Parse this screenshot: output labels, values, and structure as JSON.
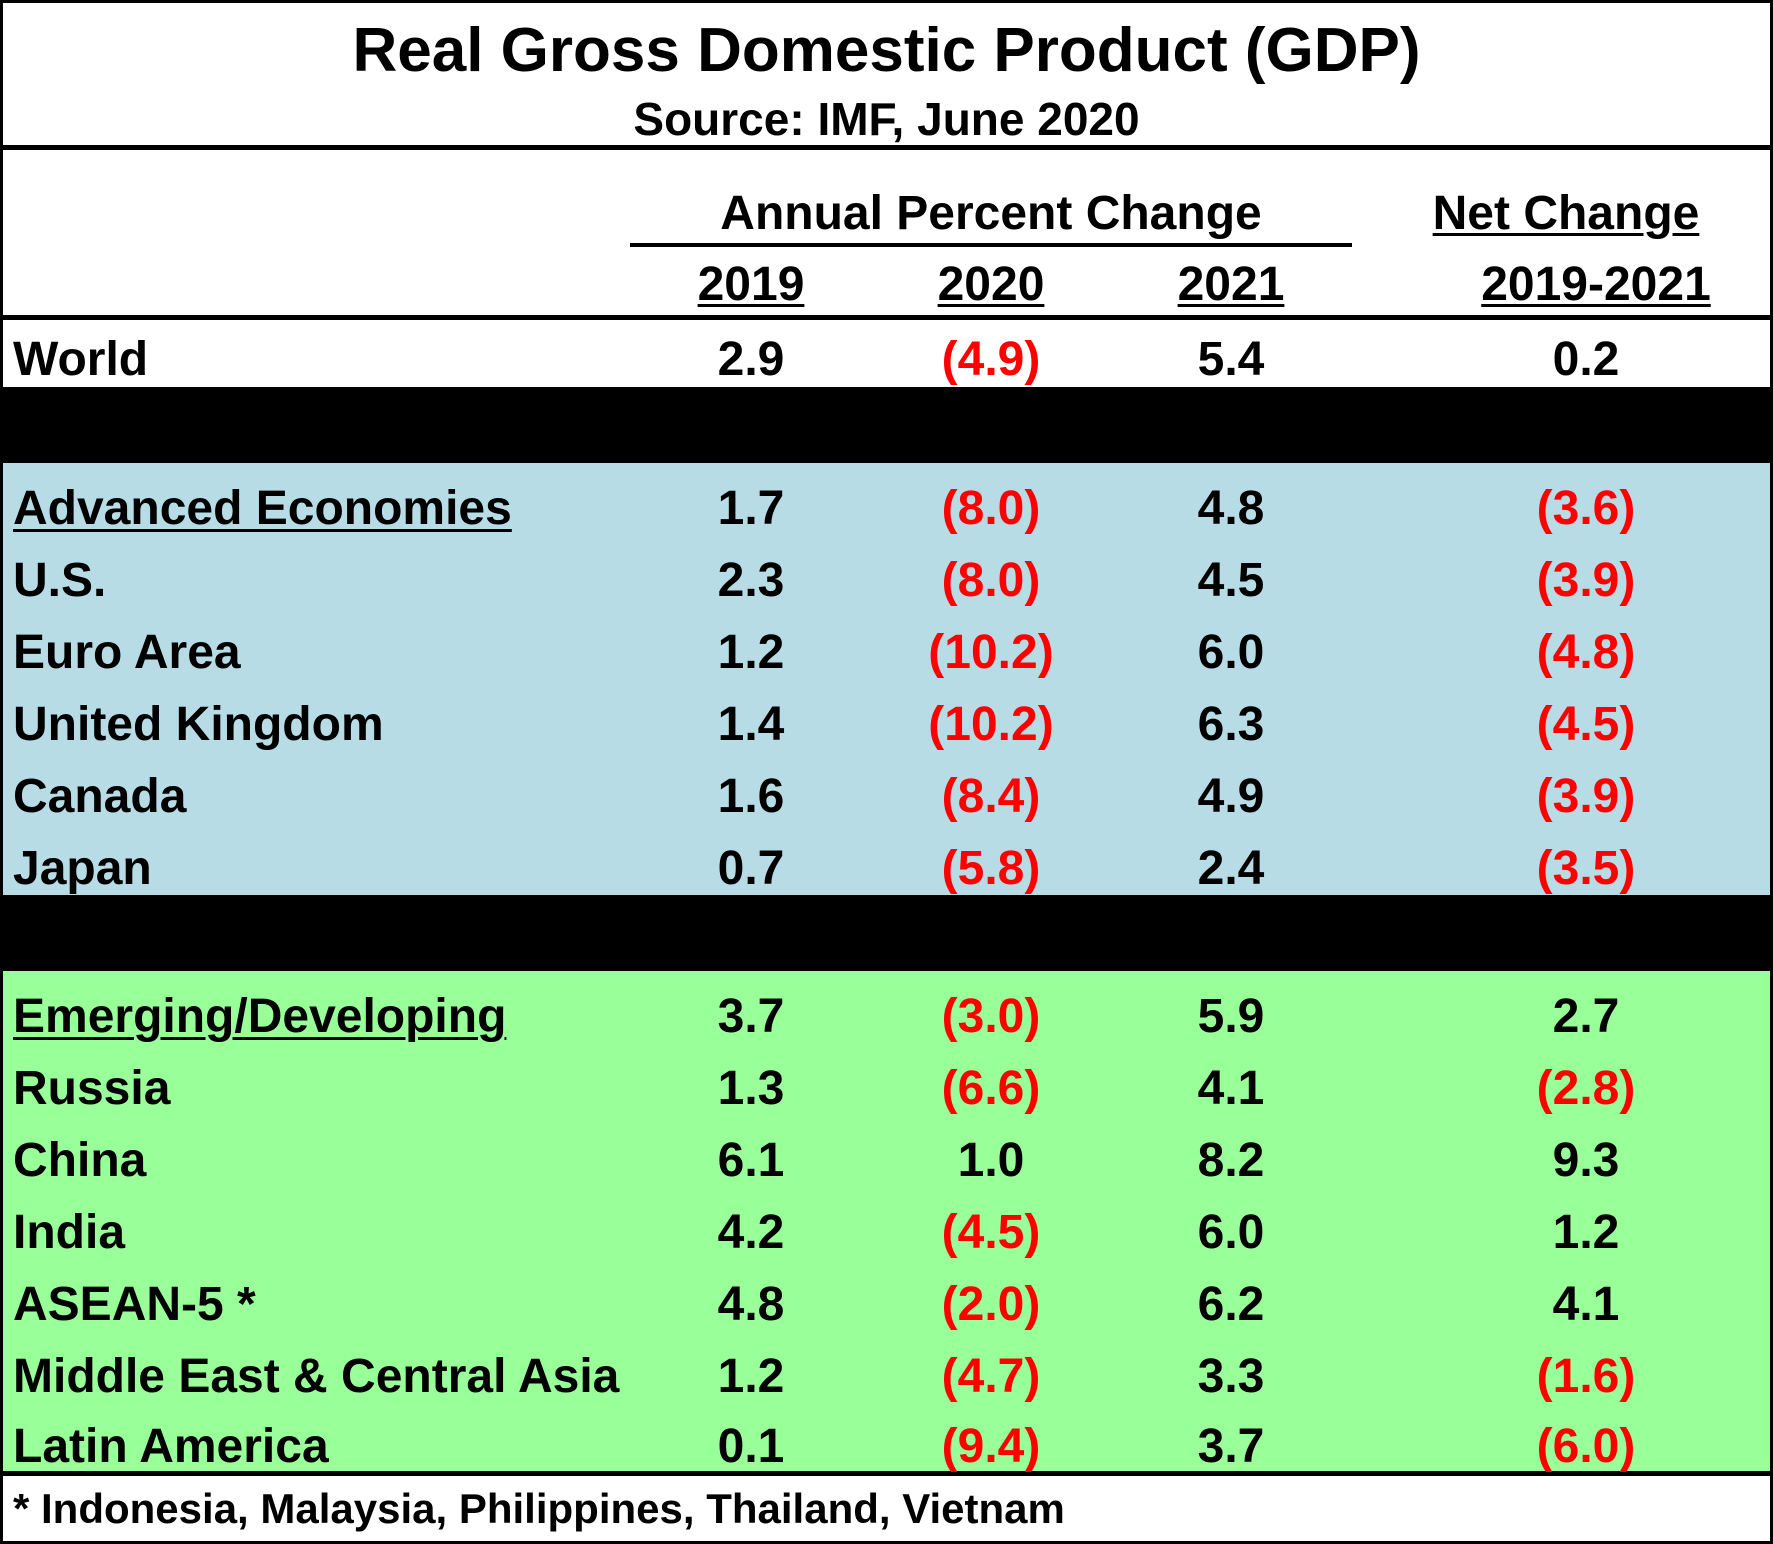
{
  "title": "Real Gross Domestic Product (GDP)",
  "subtitle": "Source:  IMF, June 2020",
  "header": {
    "group_label": "Annual Percent Change",
    "net_label": "Net Change",
    "years": [
      "2019",
      "2020",
      "2021"
    ],
    "net_years": "2019-2021"
  },
  "chart_data": {
    "type": "table",
    "title": "Real Gross Domestic Product (GDP)",
    "subtitle": "Source:  IMF, June 2020",
    "columns": [
      "2019",
      "2020",
      "2021",
      "2019-2021"
    ],
    "rows": [
      {
        "label": "World",
        "group": "world",
        "values": [
          "2.9",
          "(4.9)",
          "5.4",
          "0.2"
        ]
      },
      {
        "label": "Advanced Economies",
        "group": "advanced",
        "heading": true,
        "values": [
          "1.7",
          "(8.0)",
          "4.8",
          "(3.6)"
        ]
      },
      {
        "label": "U.S.",
        "group": "advanced",
        "values": [
          "2.3",
          "(8.0)",
          "4.5",
          "(3.9)"
        ]
      },
      {
        "label": "Euro Area",
        "group": "advanced",
        "values": [
          "1.2",
          "(10.2)",
          "6.0",
          "(4.8)"
        ]
      },
      {
        "label": "United Kingdom",
        "group": "advanced",
        "values": [
          "1.4",
          "(10.2)",
          "6.3",
          "(4.5)"
        ]
      },
      {
        "label": "Canada",
        "group": "advanced",
        "values": [
          "1.6",
          "(8.4)",
          "4.9",
          "(3.9)"
        ]
      },
      {
        "label": "Japan",
        "group": "advanced",
        "values": [
          "0.7",
          "(5.8)",
          "2.4",
          "(3.5)"
        ]
      },
      {
        "label": "Emerging/Developing",
        "group": "emerging",
        "heading": true,
        "values": [
          "3.7",
          "(3.0)",
          "5.9",
          "2.7"
        ]
      },
      {
        "label": "Russia",
        "group": "emerging",
        "values": [
          "1.3",
          "(6.6)",
          "4.1",
          "(2.8)"
        ]
      },
      {
        "label": "China",
        "group": "emerging",
        "values": [
          "6.1",
          "1.0",
          "8.2",
          "9.3"
        ]
      },
      {
        "label": "India",
        "group": "emerging",
        "values": [
          "4.2",
          "(4.5)",
          "6.0",
          "1.2"
        ]
      },
      {
        "label": "ASEAN-5 *",
        "group": "emerging",
        "values": [
          "4.8",
          "(2.0)",
          "6.2",
          "4.1"
        ]
      },
      {
        "label": "Middle East & Central Asia",
        "group": "emerging",
        "values": [
          "1.2",
          "(4.7)",
          "3.3",
          "(1.6)"
        ]
      },
      {
        "label": "Latin America",
        "group": "emerging",
        "values": [
          "0.1",
          "(9.4)",
          "3.7",
          "(6.0)"
        ]
      }
    ]
  },
  "colors": {
    "advanced_band": "#b8dce6",
    "emerging_band": "#99ff99",
    "negative_text": "#ff0000",
    "separator": "#000000"
  },
  "footnote": "* Indonesia, Malaysia, Philippines, Thailand, Vietnam"
}
